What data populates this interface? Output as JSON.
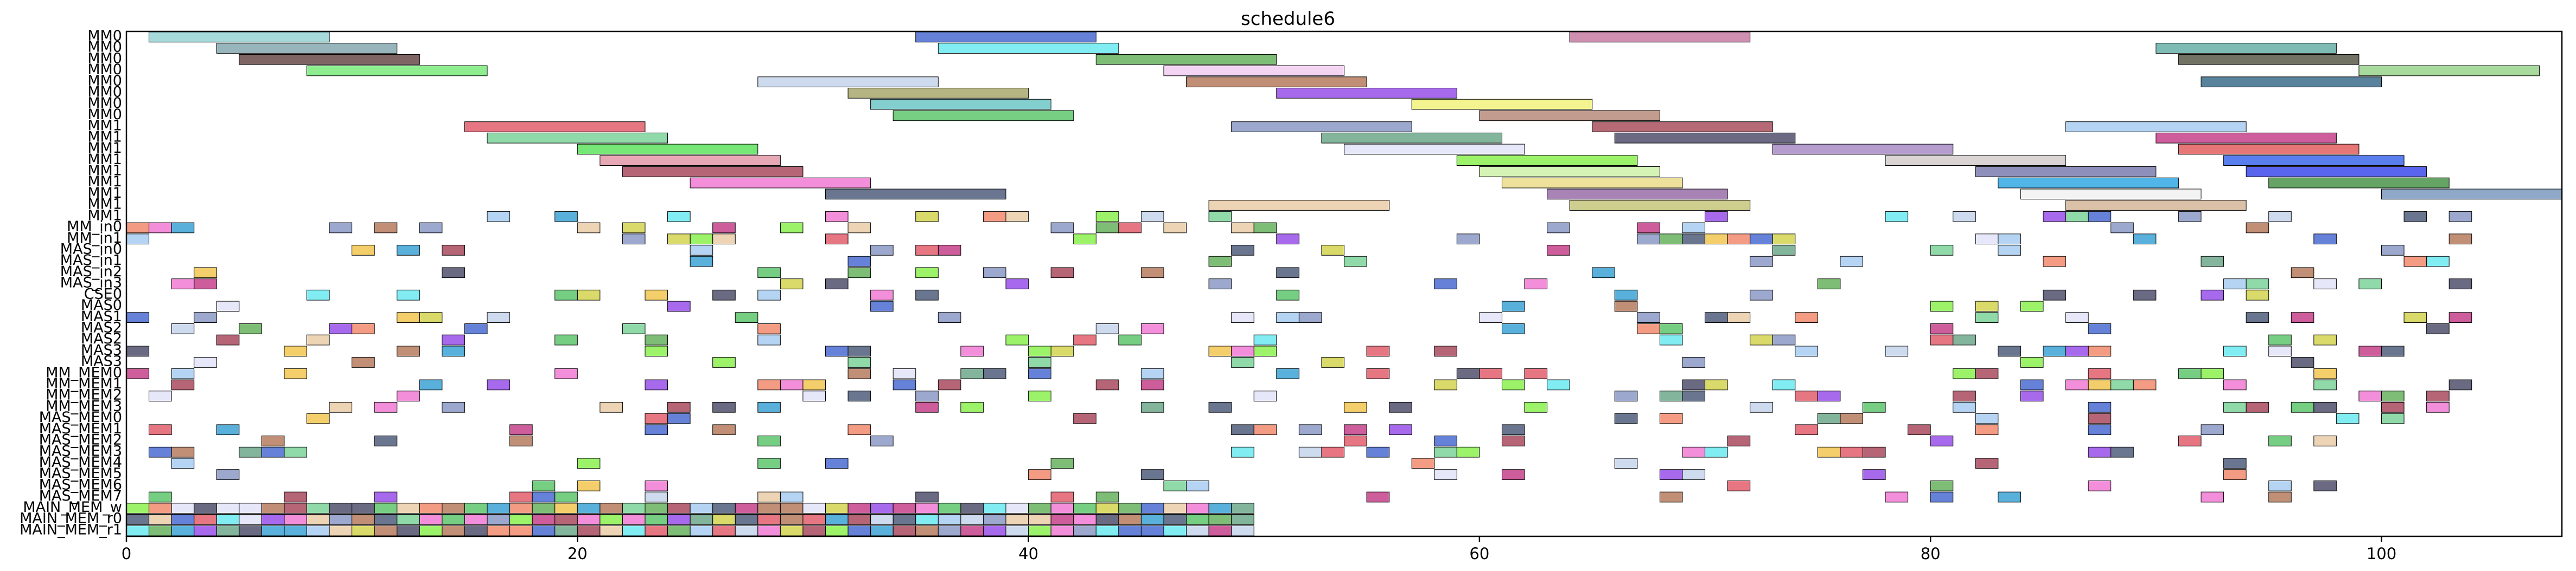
{
  "chart_data": {
    "type": "gantt",
    "title": "schedule6",
    "xlabel": "",
    "ylabel": "",
    "xlim": [
      0,
      108
    ],
    "xticks": [
      0,
      20,
      40,
      60,
      80,
      100
    ],
    "grid": false,
    "rows": [
      "MM0",
      "MM0",
      "MM0",
      "MM0",
      "MM0",
      "MM0",
      "MM0",
      "MM0",
      "MM1",
      "MM1",
      "MM1",
      "MM1",
      "MM1",
      "MM1",
      "MM1",
      "MM1",
      "MM1",
      "MM_in0",
      "MM_in1",
      "MAS_in0",
      "MAS_in1",
      "MAS_in2",
      "MAS_in3",
      "CSE0",
      "MAS0",
      "MAS1",
      "MAS2",
      "MAS2",
      "MAS3",
      "MAS3",
      "MM_MEM0",
      "MM_MEM1",
      "MM_MEM2",
      "MM_MEM3",
      "MAS_MEM0",
      "MAS_MEM1",
      "MAS_MEM2",
      "MAS_MEM3",
      "MAS_MEM4",
      "MAS_MEM5",
      "MAS_MEM6",
      "MAS_MEM7",
      "MAIN_MEM_w",
      "MAIN_MEM_r0",
      "MAIN_MEM_r1"
    ],
    "long_tasks": [
      {
        "row": 0,
        "start": 1,
        "end": 9,
        "color": "#8ecfcf"
      },
      {
        "row": 0,
        "start": 35,
        "end": 43,
        "color": "#3a5fcd"
      },
      {
        "row": 0,
        "start": 64,
        "end": 72,
        "color": "#c0709a"
      },
      {
        "row": 1,
        "start": 4,
        "end": 12,
        "color": "#7aa0a8"
      },
      {
        "row": 1,
        "start": 36,
        "end": 44,
        "color": "#5ee8f0"
      },
      {
        "row": 1,
        "start": 90,
        "end": 98,
        "color": "#5aa8a0"
      },
      {
        "row": 2,
        "start": 5,
        "end": 13,
        "color": "#5c3a3a"
      },
      {
        "row": 2,
        "start": 43,
        "end": 51,
        "color": "#5aaa50"
      },
      {
        "row": 2,
        "start": 91,
        "end": 99,
        "color": "#4a4a3a"
      },
      {
        "row": 3,
        "start": 8,
        "end": 16,
        "color": "#6ee86e"
      },
      {
        "row": 3,
        "start": 46,
        "end": 54,
        "color": "#f0c8f0"
      },
      {
        "row": 3,
        "start": 99,
        "end": 107,
        "color": "#8ed080"
      },
      {
        "row": 4,
        "start": 28,
        "end": 36,
        "color": "#c0d0e8"
      },
      {
        "row": 4,
        "start": 47,
        "end": 55,
        "color": "#b07050"
      },
      {
        "row": 4,
        "start": 92,
        "end": 100,
        "color": "#2a6080"
      },
      {
        "row": 5,
        "start": 32,
        "end": 40,
        "color": "#a0a060"
      },
      {
        "row": 5,
        "start": 51,
        "end": 59,
        "color": "#9040e8"
      },
      {
        "row": 6,
        "start": 33,
        "end": 41,
        "color": "#60c0c0"
      },
      {
        "row": 6,
        "start": 57,
        "end": 65,
        "color": "#f0f070"
      },
      {
        "row": 7,
        "start": 34,
        "end": 42,
        "color": "#50c060"
      },
      {
        "row": 7,
        "start": 60,
        "end": 68,
        "color": "#b08070"
      },
      {
        "row": 8,
        "start": 15,
        "end": 23,
        "color": "#e05060"
      },
      {
        "row": 8,
        "start": 49,
        "end": 57,
        "color": "#8090c0"
      },
      {
        "row": 8,
        "start": 65,
        "end": 73,
        "color": "#a04050"
      },
      {
        "row": 8,
        "start": 86,
        "end": 94,
        "color": "#a0c8f0"
      },
      {
        "row": 9,
        "start": 16,
        "end": 24,
        "color": "#70d090"
      },
      {
        "row": 9,
        "start": 53,
        "end": 61,
        "color": "#60a080"
      },
      {
        "row": 9,
        "start": 66,
        "end": 74,
        "color": "#404060"
      },
      {
        "row": 9,
        "start": 90,
        "end": 98,
        "color": "#c03080"
      },
      {
        "row": 10,
        "start": 20,
        "end": 28,
        "color": "#50e050"
      },
      {
        "row": 10,
        "start": 54,
        "end": 62,
        "color": "#e0e0f8"
      },
      {
        "row": 10,
        "start": 73,
        "end": 81,
        "color": "#a080c0"
      },
      {
        "row": 10,
        "start": 91,
        "end": 99,
        "color": "#e05050"
      },
      {
        "row": 11,
        "start": 21,
        "end": 29,
        "color": "#e090a0"
      },
      {
        "row": 11,
        "start": 59,
        "end": 67,
        "color": "#80f040"
      },
      {
        "row": 11,
        "start": 78,
        "end": 86,
        "color": "#d0c8c8"
      },
      {
        "row": 11,
        "start": 93,
        "end": 101,
        "color": "#2a5ae8"
      },
      {
        "row": 12,
        "start": 22,
        "end": 30,
        "color": "#a03a50"
      },
      {
        "row": 12,
        "start": 60,
        "end": 68,
        "color": "#c8f0a0"
      },
      {
        "row": 12,
        "start": 82,
        "end": 90,
        "color": "#7070a8"
      },
      {
        "row": 12,
        "start": 94,
        "end": 102,
        "color": "#2a3ae8"
      },
      {
        "row": 13,
        "start": 25,
        "end": 33,
        "color": "#f070d0"
      },
      {
        "row": 13,
        "start": 61,
        "end": 69,
        "color": "#e8d880"
      },
      {
        "row": 13,
        "start": 83,
        "end": 91,
        "color": "#20a0e0"
      },
      {
        "row": 13,
        "start": 95,
        "end": 103,
        "color": "#3a8a3a"
      },
      {
        "row": 14,
        "start": 31,
        "end": 39,
        "color": "#405070"
      },
      {
        "row": 14,
        "start": 63,
        "end": 71,
        "color": "#9060a0"
      },
      {
        "row": 14,
        "start": 84,
        "end": 92,
        "color": "#f0f0f0"
      },
      {
        "row": 14,
        "start": 100,
        "end": 108,
        "color": "#7090b8"
      },
      {
        "row": 15,
        "start": 48,
        "end": 56,
        "color": "#e8c8a0"
      },
      {
        "row": 15,
        "start": 64,
        "end": 72,
        "color": "#c0c070"
      },
      {
        "row": 15,
        "start": 86,
        "end": 94,
        "color": "#d0b090"
      }
    ],
    "short_task_rows": {
      "first_row": 15,
      "last_row": 44,
      "duration": 1,
      "count_min": 6,
      "count_max": 30,
      "x_max": 104
    }
  }
}
